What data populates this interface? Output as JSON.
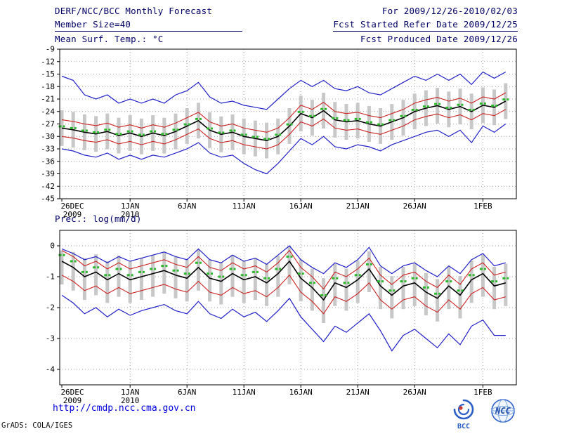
{
  "header": {
    "title": "DERF/NCC/BCC Monthly Forecast",
    "member_size": "Member Size=40",
    "for_range": "For 2009/12/26-2010/02/03",
    "refer_date": "Fcst Started Refer Date 2009/12/25",
    "produced_date": "Fcst Produced Date 2009/12/26"
  },
  "footer": {
    "url": "http://cmdp.ncc.cma.gov.cn",
    "credit": "GrADS: COLA/IGES",
    "bcc_label": "BCC",
    "ncc_label": "NCC"
  },
  "chart_data": [
    {
      "type": "line",
      "title": "Mean Surf. Temp.: °C",
      "xlabel": "",
      "ylabel": "°C",
      "ylim": [
        -45,
        -9
      ],
      "yticks": [
        -9,
        -12,
        -15,
        -18,
        -21,
        -24,
        -27,
        -30,
        -33,
        -36,
        -39,
        -42,
        -45
      ],
      "grid": true,
      "legend": "none",
      "x_ticks": [
        {
          "day": 0,
          "label": "26DEC",
          "sub": "2009"
        },
        {
          "day": 6,
          "label": "1JAN",
          "sub": "2010"
        },
        {
          "day": 11,
          "label": "6JAN"
        },
        {
          "day": 16,
          "label": "11JAN"
        },
        {
          "day": 21,
          "label": "16JAN"
        },
        {
          "day": 26,
          "label": "21JAN"
        },
        {
          "day": 31,
          "label": "26JAN"
        },
        {
          "day": 37,
          "label": "1FEB"
        }
      ],
      "series": [
        {
          "name": "ensemble-max",
          "color": "#2020c8",
          "width": 1.2,
          "values": [
            -15.5,
            -16.5,
            -20.0,
            -21.0,
            -20.0,
            -22.0,
            -21.0,
            -22.0,
            -21.0,
            -22.0,
            -20.0,
            -19.0,
            -17.0,
            -20.5,
            -22.0,
            -21.5,
            -22.5,
            -23.0,
            -23.5,
            -21.0,
            -18.5,
            -16.5,
            -18.0,
            -16.5,
            -18.5,
            -19.0,
            -18.0,
            -19.5,
            -20.0,
            -18.5,
            -17.0,
            -15.5,
            -16.5,
            -15.0,
            -16.5,
            -15.0,
            -17.5,
            -14.5,
            -16.0,
            -14.5
          ]
        },
        {
          "name": "upper-quartile",
          "color": "#cc2222",
          "width": 1.1,
          "values": [
            -26.0,
            -26.4,
            -27.0,
            -27.4,
            -26.8,
            -27.8,
            -27.2,
            -28.0,
            -27.2,
            -27.8,
            -26.8,
            -25.5,
            -24.2,
            -26.5,
            -27.5,
            -27.0,
            -28.0,
            -28.5,
            -29.0,
            -28.0,
            -25.5,
            -22.5,
            -23.5,
            -21.8,
            -24.0,
            -24.5,
            -24.2,
            -25.0,
            -25.5,
            -24.5,
            -23.5,
            -22.0,
            -21.2,
            -20.6,
            -21.5,
            -20.8,
            -22.0,
            -20.5,
            -21.0,
            -19.5
          ]
        },
        {
          "name": "ensemble-mean",
          "color": "#000000",
          "width": 1.6,
          "values": [
            -28.0,
            -28.4,
            -29.0,
            -29.4,
            -28.8,
            -29.8,
            -29.2,
            -30.0,
            -29.2,
            -29.8,
            -28.8,
            -27.5,
            -26.2,
            -28.5,
            -29.5,
            -29.0,
            -30.0,
            -30.5,
            -31.0,
            -30.0,
            -27.5,
            -24.5,
            -25.5,
            -23.8,
            -26.0,
            -26.5,
            -26.2,
            -27.0,
            -27.5,
            -26.5,
            -25.5,
            -24.0,
            -23.2,
            -22.6,
            -23.5,
            -22.8,
            -24.0,
            -22.5,
            -23.0,
            -21.5
          ]
        },
        {
          "name": "lower-quartile",
          "color": "#cc2222",
          "width": 1.1,
          "values": [
            -30.0,
            -30.4,
            -31.0,
            -31.4,
            -30.8,
            -31.8,
            -31.2,
            -32.0,
            -31.2,
            -31.8,
            -30.8,
            -29.5,
            -28.2,
            -30.5,
            -31.5,
            -31.0,
            -32.0,
            -32.5,
            -33.0,
            -32.0,
            -29.5,
            -26.5,
            -27.5,
            -25.8,
            -28.0,
            -28.5,
            -28.2,
            -29.0,
            -29.5,
            -28.5,
            -27.5,
            -26.0,
            -25.2,
            -24.6,
            -25.5,
            -24.8,
            -26.0,
            -24.5,
            -25.0,
            -23.5
          ]
        },
        {
          "name": "ensemble-min",
          "color": "#2020c8",
          "width": 1.2,
          "values": [
            -33.0,
            -33.5,
            -34.5,
            -35.0,
            -34.0,
            -35.5,
            -34.5,
            -35.5,
            -34.5,
            -35.0,
            -34.0,
            -33.0,
            -31.5,
            -34.0,
            -35.0,
            -34.5,
            -36.5,
            -38.0,
            -39.0,
            -36.5,
            -33.5,
            -30.5,
            -32.0,
            -30.0,
            -32.5,
            -33.0,
            -32.0,
            -32.5,
            -33.5,
            -32.0,
            -31.0,
            -30.0,
            -29.0,
            -28.5,
            -30.0,
            -28.5,
            -31.5,
            -27.5,
            -29.0,
            -27.0
          ]
        }
      ],
      "median": {
        "name": "ensemble-median",
        "color": "#2eb82e",
        "values": [
          -27.6,
          -28.0,
          -28.6,
          -29.0,
          -28.4,
          -29.4,
          -28.8,
          -29.6,
          -28.8,
          -29.4,
          -28.4,
          -27.1,
          -25.8,
          -28.1,
          -29.1,
          -28.6,
          -29.6,
          -30.1,
          -30.6,
          -29.6,
          -27.1,
          -24.1,
          -25.1,
          -23.4,
          -25.6,
          -26.1,
          -25.8,
          -26.6,
          -27.1,
          -26.1,
          -25.1,
          -23.6,
          -22.8,
          -22.2,
          -23.1,
          -22.4,
          -23.6,
          -22.1,
          -22.6,
          -21.1
        ]
      },
      "bars": {
        "name": "ensemble-spread",
        "color": "#c8c8c8",
        "high": [
          -23.7,
          -24.1,
          -24.7,
          -25.1,
          -24.5,
          -25.5,
          -24.9,
          -25.7,
          -24.9,
          -25.5,
          -24.5,
          -23.2,
          -21.9,
          -24.2,
          -25.2,
          -24.7,
          -25.7,
          -26.2,
          -26.7,
          -25.7,
          -23.2,
          -20.2,
          -21.2,
          -19.5,
          -21.7,
          -22.2,
          -21.9,
          -22.7,
          -23.2,
          -22.2,
          -21.2,
          -19.7,
          -18.9,
          -18.3,
          -19.2,
          -18.5,
          -19.7,
          -18.2,
          -18.7,
          -17.2
        ],
        "low": [
          -32.3,
          -32.7,
          -33.3,
          -33.7,
          -33.1,
          -34.1,
          -33.5,
          -34.3,
          -33.5,
          -34.1,
          -33.1,
          -31.8,
          -30.5,
          -32.8,
          -33.8,
          -33.3,
          -34.3,
          -34.8,
          -35.3,
          -34.3,
          -31.8,
          -28.8,
          -29.8,
          -28.1,
          -30.3,
          -30.8,
          -30.5,
          -31.3,
          -31.8,
          -30.8,
          -29.8,
          -28.3,
          -27.5,
          -26.9,
          -27.8,
          -27.1,
          -28.3,
          -26.8,
          -27.3,
          -25.8
        ]
      }
    },
    {
      "type": "line",
      "title": "Prec.: log(mm/d)",
      "xlabel": "",
      "ylabel": "log(mm/d)",
      "ylim": [
        -4.5,
        0.5
      ],
      "yticks": [
        0,
        -1,
        -2,
        -3,
        -4
      ],
      "grid": true,
      "legend": "none",
      "x_ticks": [
        {
          "day": 0,
          "label": "26DEC",
          "sub": "2009"
        },
        {
          "day": 6,
          "label": "1JAN",
          "sub": "2010"
        },
        {
          "day": 11,
          "label": "6JAN"
        },
        {
          "day": 16,
          "label": "11JAN"
        },
        {
          "day": 21,
          "label": "16JAN"
        },
        {
          "day": 26,
          "label": "21JAN"
        },
        {
          "day": 31,
          "label": "26JAN"
        },
        {
          "day": 37,
          "label": "1FEB"
        }
      ],
      "series": [
        {
          "name": "ensemble-max",
          "color": "#2020c8",
          "width": 1.2,
          "values": [
            -0.1,
            -0.25,
            -0.45,
            -0.35,
            -0.55,
            -0.35,
            -0.5,
            -0.4,
            -0.3,
            -0.2,
            -0.35,
            -0.45,
            -0.1,
            -0.45,
            -0.55,
            -0.3,
            -0.5,
            -0.4,
            -0.6,
            -0.3,
            0.0,
            -0.45,
            -0.7,
            -0.9,
            -0.55,
            -0.7,
            -0.45,
            -0.05,
            -0.65,
            -0.9,
            -0.65,
            -0.55,
            -0.8,
            -1.0,
            -0.65,
            -0.9,
            -0.45,
            -0.25,
            -0.65,
            -0.55
          ]
        },
        {
          "name": "upper-quartile",
          "color": "#cc2222",
          "width": 1.1,
          "values": [
            -0.15,
            -0.35,
            -0.65,
            -0.5,
            -0.75,
            -0.55,
            -0.75,
            -0.65,
            -0.55,
            -0.45,
            -0.6,
            -0.7,
            -0.35,
            -0.7,
            -0.8,
            -0.55,
            -0.75,
            -0.65,
            -0.85,
            -0.55,
            -0.15,
            -0.7,
            -1.0,
            -1.4,
            -0.85,
            -1.0,
            -0.75,
            -0.4,
            -0.95,
            -1.25,
            -0.95,
            -0.85,
            -1.15,
            -1.35,
            -0.95,
            -1.25,
            -0.75,
            -0.55,
            -0.95,
            -0.85
          ]
        },
        {
          "name": "ensemble-mean",
          "color": "#000000",
          "width": 1.6,
          "values": [
            -0.5,
            -0.7,
            -1.0,
            -0.85,
            -1.1,
            -0.9,
            -1.1,
            -1.0,
            -0.9,
            -0.8,
            -0.95,
            -1.05,
            -0.7,
            -1.05,
            -1.15,
            -0.9,
            -1.1,
            -1.0,
            -1.2,
            -0.9,
            -0.5,
            -1.05,
            -1.35,
            -1.75,
            -1.2,
            -1.35,
            -1.1,
            -0.75,
            -1.3,
            -1.6,
            -1.3,
            -1.2,
            -1.5,
            -1.7,
            -1.3,
            -1.6,
            -1.1,
            -0.9,
            -1.3,
            -1.2
          ]
        },
        {
          "name": "lower-quartile",
          "color": "#cc2222",
          "width": 1.1,
          "values": [
            -0.95,
            -1.15,
            -1.45,
            -1.3,
            -1.55,
            -1.35,
            -1.55,
            -1.45,
            -1.35,
            -1.25,
            -1.4,
            -1.5,
            -1.15,
            -1.5,
            -1.6,
            -1.35,
            -1.55,
            -1.45,
            -1.65,
            -1.35,
            -0.95,
            -1.5,
            -1.8,
            -2.2,
            -1.65,
            -1.8,
            -1.55,
            -1.2,
            -1.75,
            -2.05,
            -1.75,
            -1.65,
            -1.95,
            -2.15,
            -1.75,
            -2.05,
            -1.55,
            -1.35,
            -1.75,
            -1.65
          ]
        },
        {
          "name": "ensemble-min",
          "color": "#2020c8",
          "width": 1.2,
          "values": [
            -1.6,
            -1.85,
            -2.2,
            -2.0,
            -2.3,
            -2.05,
            -2.25,
            -2.1,
            -2.0,
            -1.9,
            -2.1,
            -2.2,
            -1.8,
            -2.2,
            -2.35,
            -2.05,
            -2.3,
            -2.15,
            -2.45,
            -2.1,
            -1.7,
            -2.3,
            -2.7,
            -3.1,
            -2.6,
            -2.8,
            -2.5,
            -2.2,
            -2.75,
            -3.4,
            -2.9,
            -2.7,
            -3.0,
            -3.3,
            -2.85,
            -3.2,
            -2.6,
            -2.4,
            -2.9,
            -2.9
          ]
        }
      ],
      "median": {
        "name": "ensemble-median",
        "color": "#2eb82e",
        "values": [
          -0.3,
          -0.5,
          -0.85,
          -0.7,
          -0.95,
          -0.75,
          -0.95,
          -0.85,
          -0.75,
          -0.65,
          -0.8,
          -0.9,
          -0.55,
          -0.9,
          -1.0,
          -0.75,
          -0.95,
          -0.85,
          -1.05,
          -0.75,
          -0.35,
          -0.9,
          -1.2,
          -1.6,
          -1.05,
          -1.2,
          -0.95,
          -0.6,
          -1.15,
          -1.45,
          -1.15,
          -1.05,
          -1.35,
          -1.55,
          -1.15,
          -1.45,
          -0.95,
          -0.75,
          -1.15,
          -1.05
        ]
      },
      "bars": {
        "name": "ensemble-spread",
        "color": "#c8c8c8",
        "high": [
          -0.15,
          -0.2,
          -0.4,
          -0.28,
          -0.5,
          -0.32,
          -0.5,
          -0.4,
          -0.3,
          -0.22,
          -0.36,
          -0.44,
          -0.12,
          -0.44,
          -0.54,
          -0.3,
          -0.48,
          -0.4,
          -0.58,
          -0.32,
          -0.02,
          -0.44,
          -0.74,
          -1.05,
          -0.58,
          -0.74,
          -0.48,
          -0.18,
          -0.68,
          -0.98,
          -0.68,
          -0.58,
          -0.88,
          -1.08,
          -0.68,
          -0.98,
          -0.48,
          -0.28,
          -0.68,
          -0.58
        ],
        "low": [
          -1.25,
          -1.45,
          -1.75,
          -1.6,
          -1.85,
          -1.65,
          -1.85,
          -1.75,
          -1.65,
          -1.55,
          -1.7,
          -1.8,
          -1.45,
          -1.8,
          -1.9,
          -1.65,
          -1.85,
          -1.75,
          -1.95,
          -1.65,
          -1.25,
          -1.8,
          -2.1,
          -2.5,
          -1.95,
          -2.1,
          -1.85,
          -1.5,
          -2.05,
          -2.35,
          -2.05,
          -1.95,
          -2.25,
          -2.45,
          -2.05,
          -2.35,
          -1.85,
          -1.65,
          -2.05,
          -1.95
        ]
      }
    }
  ]
}
